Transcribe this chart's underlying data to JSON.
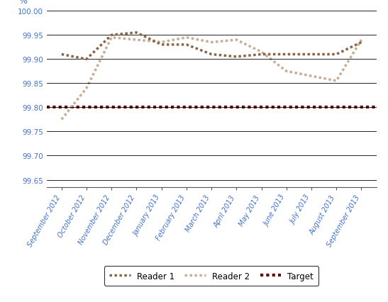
{
  "categories": [
    "September 2012",
    "October 2012",
    "November 2012",
    "December 2012",
    "January 2013",
    "February 2013",
    "March 2013",
    "April 2013",
    "May 2013",
    "June 2013",
    "July 2013",
    "August 2013",
    "September 2013"
  ],
  "reader1": [
    99.91,
    99.9,
    99.95,
    99.955,
    99.93,
    99.93,
    99.91,
    99.905,
    99.91,
    99.91,
    99.91,
    99.91,
    99.935
  ],
  "reader2": [
    99.775,
    99.84,
    99.945,
    99.94,
    99.935,
    99.945,
    99.935,
    99.94,
    99.915,
    99.875,
    99.865,
    99.855,
    99.94
  ],
  "target": 99.8,
  "reader1_color": "#8B6347",
  "reader2_color": "#C8AD96",
  "target_color": "#6B0000",
  "ylim": [
    99.635,
    100.005
  ],
  "yticks": [
    99.65,
    99.7,
    99.75,
    99.8,
    99.85,
    99.9,
    99.95,
    100.0
  ],
  "ylabel": "%",
  "legend_labels": [
    "Reader 1",
    "Reader 2",
    "Target"
  ],
  "bg_color": "#FFFFFF",
  "grid_color": "#000000",
  "tick_color": "#4472C4",
  "label_color": "#4472C4",
  "frame_color": "#000000"
}
